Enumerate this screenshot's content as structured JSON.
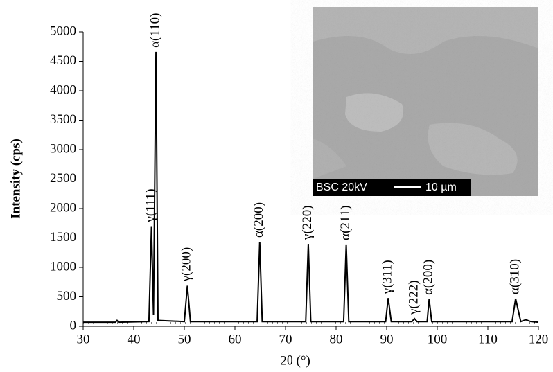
{
  "chart_data": {
    "type": "line",
    "xlabel": "2θ (°)",
    "ylabel": "Intensity (cps)",
    "x": [
      30,
      36.4,
      36.7,
      37,
      43,
      43.5,
      43.9,
      44.4,
      44.8,
      50,
      50.6,
      51.2,
      64.4,
      64.9,
      65.4,
      74,
      74.5,
      75,
      81.5,
      82,
      82.5,
      89.8,
      90.3,
      90.9,
      95,
      95.5,
      96,
      98,
      98.4,
      98.9,
      114.8,
      115.5,
      116.5,
      117.5,
      118.5,
      120
    ],
    "values": [
      70,
      70,
      100,
      70,
      80,
      1700,
      200,
      4660,
      100,
      80,
      690,
      80,
      80,
      1435,
      80,
      80,
      1400,
      80,
      80,
      1390,
      80,
      80,
      480,
      80,
      80,
      130,
      80,
      80,
      460,
      80,
      80,
      470,
      80,
      110,
      80,
      70
    ],
    "color": "#000000",
    "xlim": [
      30,
      120
    ],
    "xticks": [
      30,
      40,
      50,
      60,
      70,
      80,
      90,
      100,
      110,
      120
    ],
    "ylim": [
      0,
      5000
    ],
    "yticks": [
      0,
      500,
      1000,
      1500,
      2000,
      2500,
      3000,
      3500,
      4000,
      4500,
      5000
    ],
    "annotations": [
      {
        "text": "γ(111)",
        "x": 43.5
      },
      {
        "text": "α(110)",
        "x": 44.4
      },
      {
        "text": "γ(200)",
        "x": 50.6
      },
      {
        "text": "α(200)",
        "x": 64.9
      },
      {
        "text": "γ(220)",
        "x": 74.5
      },
      {
        "text": "α(211)",
        "x": 82
      },
      {
        "text": "γ(311)",
        "x": 90.3
      },
      {
        "text": "γ(222)",
        "x": 95.5
      },
      {
        "text": "α(200)",
        "x": 98.4
      },
      {
        "text": "α(310)",
        "x": 115.5
      }
    ],
    "inset": {
      "label": "BSC 20kV",
      "scale": "10 µm"
    }
  }
}
